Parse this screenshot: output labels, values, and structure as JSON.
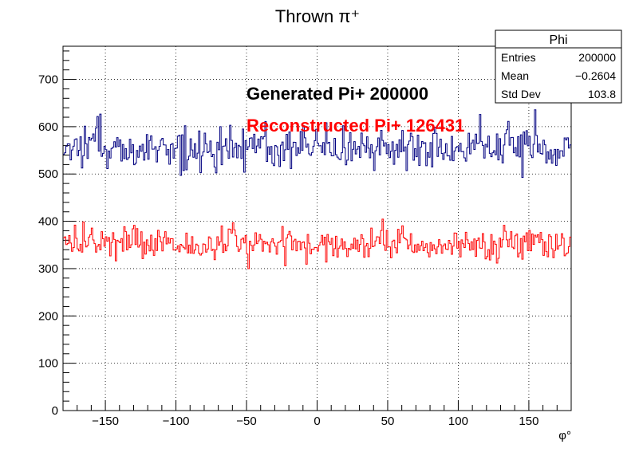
{
  "chart_data": {
    "type": "histogram",
    "title": "Thrown π⁺",
    "xlabel": "φ°",
    "ylabel": "",
    "xlim": [
      -180,
      180
    ],
    "ylim": [
      0,
      770
    ],
    "bins": 360,
    "grid": true,
    "x_ticks": [
      "−150",
      "−100",
      "−50",
      "0",
      "50",
      "100",
      "150"
    ],
    "y_ticks": [
      "0",
      "100",
      "200",
      "300",
      "400",
      "500",
      "600",
      "700"
    ],
    "series": [
      {
        "name": "",
        "color": "#000080",
        "approx_mean_count": 556,
        "approx_range": [
          465,
          640
        ]
      },
      {
        "name": "",
        "color": "#ff0000",
        "approx_mean_count": 351,
        "approx_range": [
          300,
          410
        ]
      }
    ],
    "annotations": [
      {
        "text": "Generated Pi+ 200000",
        "color": "#000000"
      },
      {
        "text": "Reconstructed Pi+ 126431",
        "color": "#ff0000"
      }
    ],
    "stats_box": {
      "title": "Phi",
      "rows": [
        {
          "label": "Entries",
          "value": "200000"
        },
        {
          "label": "Mean",
          "value": "−0.2604"
        },
        {
          "label": "Std Dev",
          "value": "103.8"
        }
      ]
    }
  }
}
